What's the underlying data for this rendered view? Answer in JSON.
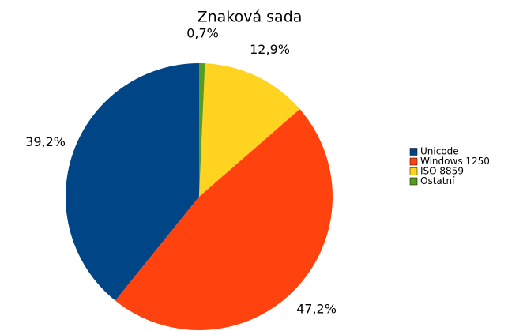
{
  "chart_data": {
    "type": "pie",
    "title": "Znaková sada",
    "categories": [
      "Unicode",
      "Windows 1250",
      "ISO 8859",
      "Ostatní"
    ],
    "values": [
      39.2,
      47.2,
      12.9,
      0.7
    ],
    "value_labels": [
      "39,2%",
      "47,2%",
      "12,9%",
      "0,7%"
    ],
    "colors": [
      "#004586",
      "#ff420e",
      "#ffd320",
      "#579d1c"
    ],
    "direction": "counterclockwise",
    "legend": "right"
  }
}
